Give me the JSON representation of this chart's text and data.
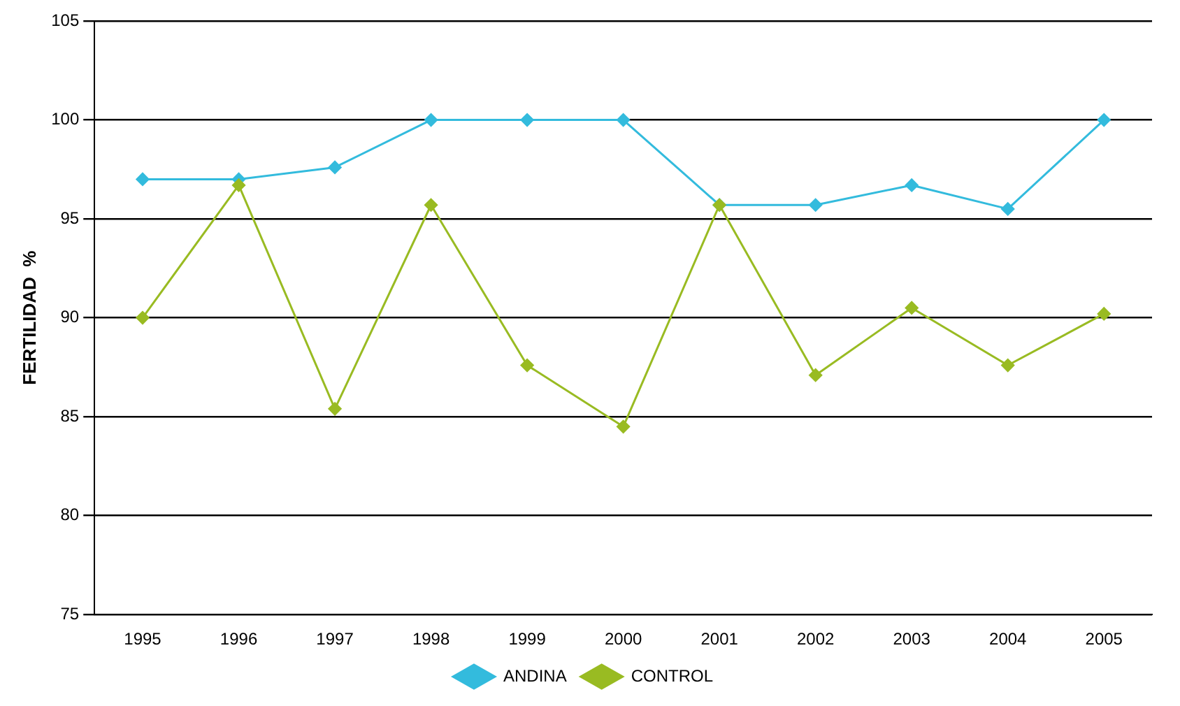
{
  "chart_data": {
    "type": "line",
    "ylabel": "FERTILIDAD  %",
    "categories": [
      "1995",
      "1996",
      "1997",
      "1998",
      "1999",
      "2000",
      "2001",
      "2002",
      "2003",
      "2004",
      "2005"
    ],
    "series": [
      {
        "name": "ANDINA",
        "color": "#33bbdd",
        "values": [
          97.0,
          97.0,
          97.6,
          100,
          100,
          100,
          95.7,
          95.7,
          96.7,
          95.5,
          100
        ]
      },
      {
        "name": "CONTROL",
        "color": "#99bb22",
        "values": [
          90.0,
          96.7,
          85.4,
          95.7,
          87.6,
          84.5,
          95.7,
          87.1,
          90.5,
          87.6,
          90.2
        ]
      }
    ],
    "ylim": [
      75,
      105
    ],
    "yticks": [
      75,
      80,
      85,
      90,
      95,
      100,
      105
    ],
    "grid": "y",
    "legend": "bottom",
    "marker": "diamond"
  }
}
